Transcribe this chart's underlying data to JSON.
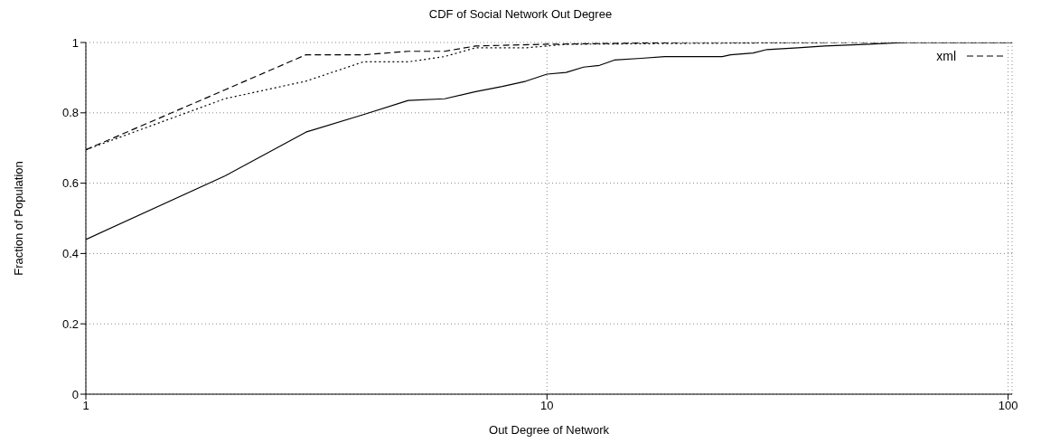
{
  "chart_data": {
    "type": "line",
    "title": "CDF of Social Network Out Degree",
    "xlabel": "Out Degree of Network",
    "ylabel": "Fraction of Population",
    "log": "x",
    "xlim": [
      1,
      102
    ],
    "xticks": [
      1,
      10,
      100
    ],
    "ylim": [
      0,
      1
    ],
    "yticks": [
      0,
      0.2,
      0.4,
      0.6,
      0.8,
      1
    ],
    "grid": true,
    "legend": "top right",
    "marker": "none",
    "series": [
      {
        "color": "#000000",
        "line_style": "solid",
        "x": [
          1,
          2,
          3,
          4,
          5,
          6,
          7,
          8,
          9,
          10,
          11,
          12,
          13,
          14,
          16,
          18,
          24,
          25,
          28,
          30,
          35,
          40,
          50,
          60,
          102
        ],
        "values": [
          0.44,
          0.62,
          0.745,
          0.795,
          0.835,
          0.84,
          0.86,
          0.875,
          0.89,
          0.91,
          0.915,
          0.93,
          0.935,
          0.95,
          0.955,
          0.96,
          0.96,
          0.965,
          0.97,
          0.98,
          0.985,
          0.99,
          0.995,
          1,
          1
        ]
      },
      {
        "name": "xml",
        "color": "#000000",
        "line_style": "dashed",
        "x": [
          1,
          2,
          3,
          4,
          5,
          6,
          7,
          10,
          20,
          102
        ],
        "values": [
          0.695,
          0.865,
          0.965,
          0.965,
          0.975,
          0.975,
          0.99,
          0.995,
          1,
          1
        ]
      },
      {
        "color": "#000000",
        "line_style": "dotted",
        "x": [
          1,
          2,
          3,
          4,
          5,
          6,
          7,
          9,
          10,
          11,
          40
        ],
        "values": [
          0.695,
          0.84,
          0.89,
          0.945,
          0.945,
          0.96,
          0.985,
          0.985,
          0.99,
          0.995,
          1
        ]
      }
    ]
  }
}
